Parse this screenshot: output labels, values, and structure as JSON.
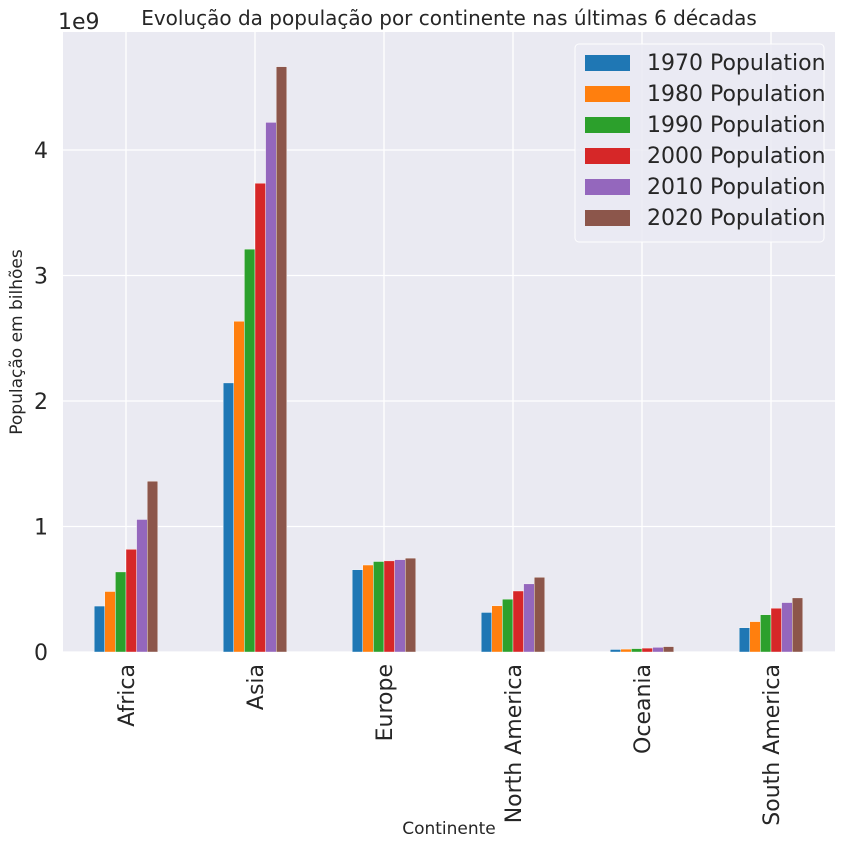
{
  "chart_data": {
    "type": "bar",
    "title": "Evolução da população por continente nas últimas 6 décadas",
    "xlabel": "Continente",
    "ylabel": "População em bilhões",
    "y_offset_label": "1e9",
    "ylim": [
      0,
      4.9
    ],
    "yticks": [
      0,
      1,
      2,
      3,
      4
    ],
    "ytick_labels": [
      "0",
      "1",
      "2",
      "3",
      "4"
    ],
    "grid": true,
    "legend_position": "top-right",
    "categories": [
      "Africa",
      "Asia",
      "Europe",
      "North America",
      "Oceania",
      "South America"
    ],
    "series": [
      {
        "name": "1970 Population",
        "color": "#1f77b4",
        "values": [
          0.366,
          2.144,
          0.655,
          0.315,
          0.02,
          0.193
        ]
      },
      {
        "name": "1980 Population",
        "color": "#ff7f0e",
        "values": [
          0.482,
          2.635,
          0.693,
          0.368,
          0.023,
          0.242
        ]
      },
      {
        "name": "1990 Population",
        "color": "#2ca02c",
        "values": [
          0.638,
          3.21,
          0.721,
          0.421,
          0.027,
          0.297
        ]
      },
      {
        "name": "2000 Population",
        "color": "#d62728",
        "values": [
          0.818,
          3.735,
          0.726,
          0.486,
          0.031,
          0.349
        ]
      },
      {
        "name": "2010 Population",
        "color": "#9467bd",
        "values": [
          1.056,
          4.22,
          0.736,
          0.543,
          0.037,
          0.394
        ]
      },
      {
        "name": "2020 Population",
        "color": "#8c564b",
        "values": [
          1.361,
          4.664,
          0.748,
          0.595,
          0.043,
          0.431
        ]
      }
    ]
  }
}
